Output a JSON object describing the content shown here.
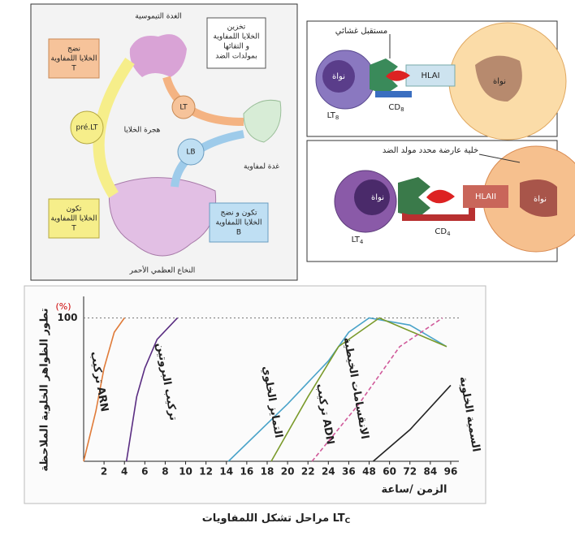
{
  "diagram1": {
    "thymus": "الغدة التيموسية",
    "storage": [
      "تخزين",
      "الخلايا اللمفاوية",
      "و التقائها",
      "بمولدات الضد"
    ],
    "maturation_t": [
      "نضج",
      "الخلايا اللمفاوية",
      "T"
    ],
    "lt": "LT",
    "prelt": "pré.LT",
    "migration": "هجرة الخلايا",
    "lb": "LB",
    "lymph_node": "غدة لمفاوية",
    "formation_t": [
      "تكون",
      "الخلايا اللمفاوية",
      "T"
    ],
    "formation_b": [
      "تكون و نضج",
      "الخلايا اللمفاوية",
      "B"
    ],
    "marrow": "النخاع العظمي الأحمر"
  },
  "diagram2": {
    "receptor": "مستقبل غشائي",
    "nucleus_lt": "نواة",
    "hla": "HLAI",
    "nucleus_cell": "نواة",
    "lt": {
      "label": "LT",
      "sub": "8"
    },
    "cd": {
      "label": "CD",
      "sub": "8"
    }
  },
  "diagram3": {
    "presenting_cell": "خلية عارضة محدد مولد الضد",
    "nucleus_lt": "نواة",
    "hla": "HLAII",
    "nucleus_cell": "نواة",
    "lt": {
      "label": "LT",
      "sub": "4"
    },
    "cd": {
      "label": "CD",
      "sub": "4"
    }
  },
  "chart_data": {
    "type": "line",
    "y_label": "تطور الظواهر الخلوية الملاحظة",
    "y_unit": "(%)",
    "x_label": "الزمن /ساعة",
    "xlim": [
      0,
      18.4
    ],
    "xticks": [
      {
        "value": 1,
        "label": "2"
      },
      {
        "value": 2,
        "label": "4"
      },
      {
        "value": 3,
        "label": "6"
      },
      {
        "value": 4,
        "label": "8"
      },
      {
        "value": 5,
        "label": "10"
      },
      {
        "value": 6,
        "label": "12"
      },
      {
        "value": 7,
        "label": "14"
      },
      {
        "value": 8,
        "label": "16"
      },
      {
        "value": 9,
        "label": "18"
      },
      {
        "value": 10,
        "label": "20"
      },
      {
        "value": 11,
        "label": "22"
      },
      {
        "value": 12,
        "label": "24"
      },
      {
        "value": 13,
        "label": "36"
      },
      {
        "value": 14,
        "label": "48"
      },
      {
        "value": 15,
        "label": "60"
      },
      {
        "value": 16,
        "label": "72"
      },
      {
        "value": 17,
        "label": "84"
      },
      {
        "value": 18,
        "label": "96"
      }
    ],
    "ylim": [
      0,
      115
    ],
    "yticks": [
      100
    ],
    "grid": true,
    "series": [
      {
        "name": "تركيب ARN",
        "color": "#e07b39",
        "x": [
          0,
          0.6,
          1,
          1.5,
          2
        ],
        "values": [
          0,
          35,
          65,
          90,
          100
        ]
      },
      {
        "name": "تركيب البروتين",
        "color": "#5a2d82",
        "x": [
          2.1,
          2.6,
          3,
          3.6,
          4.6
        ],
        "values": [
          0,
          45,
          65,
          85,
          100
        ]
      },
      {
        "name": "التمايز الخلوي",
        "color": "#4aa3c9",
        "x": [
          7.1,
          10,
          12,
          13,
          14,
          16,
          17.8
        ],
        "values": [
          0,
          40,
          70,
          90,
          100,
          95,
          80
        ]
      },
      {
        "name": "تركيب ADN",
        "color": "#7a9a2a",
        "x": [
          9.2,
          11,
          12.5,
          14.5,
          17.8
        ],
        "values": [
          0,
          45,
          80,
          100,
          80
        ]
      },
      {
        "name": "الانقسامات الخيطية",
        "color": "#d05a9a",
        "x": [
          11.2,
          13.5,
          15.5,
          17.6
        ],
        "values": [
          0,
          40,
          80,
          100
        ]
      },
      {
        "name": "السمية الخلوية",
        "color": "#222222",
        "x": [
          14.2,
          16,
          18
        ],
        "values": [
          0,
          22,
          53
        ]
      }
    ]
  },
  "caption": {
    "text": "مراحل تشكل اللمفاويات",
    "lt": "LT",
    "sub": "C"
  }
}
